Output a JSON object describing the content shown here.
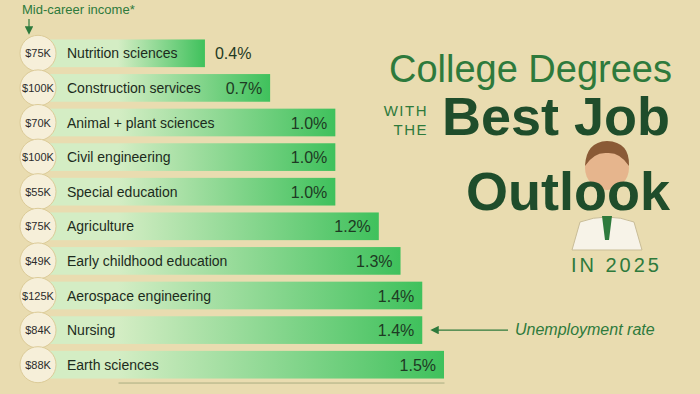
{
  "chart_data": {
    "type": "bar",
    "orientation": "horizontal",
    "title_lines": [
      "College Degrees",
      "WITH",
      "THE",
      "Best Job",
      "Outlook",
      "IN 2025"
    ],
    "annotations": [
      "Mid-career income*",
      "Unemployment rate"
    ],
    "categories": [
      "Nutrition sciences",
      "Construction services",
      "Animal + plant sciences",
      "Civil engineering",
      "Special education",
      "Agriculture",
      "Early childhood education",
      "Aerospace engineering",
      "Nursing",
      "Earth sciences"
    ],
    "values": [
      0.4,
      0.7,
      1.0,
      1.0,
      1.0,
      1.2,
      1.3,
      1.4,
      1.4,
      1.5
    ],
    "value_labels": [
      "0.4%",
      "0.7%",
      "1.0%",
      "1.0%",
      "1.0%",
      "1.2%",
      "1.3%",
      "1.4%",
      "1.4%",
      "1.5%"
    ],
    "income_values": [
      75000,
      100000,
      70000,
      100000,
      55000,
      75000,
      49000,
      125000,
      84000,
      88000
    ],
    "income_labels": [
      "$75K",
      "$100K",
      "$70K",
      "$100K",
      "$55K",
      "$75K",
      "$49K",
      "$125K",
      "$84K",
      "$88K"
    ],
    "color": "#3fc15c",
    "xlim": [
      0,
      1.5
    ],
    "grid": false,
    "data_labels": true,
    "tick_labels": false
  }
}
